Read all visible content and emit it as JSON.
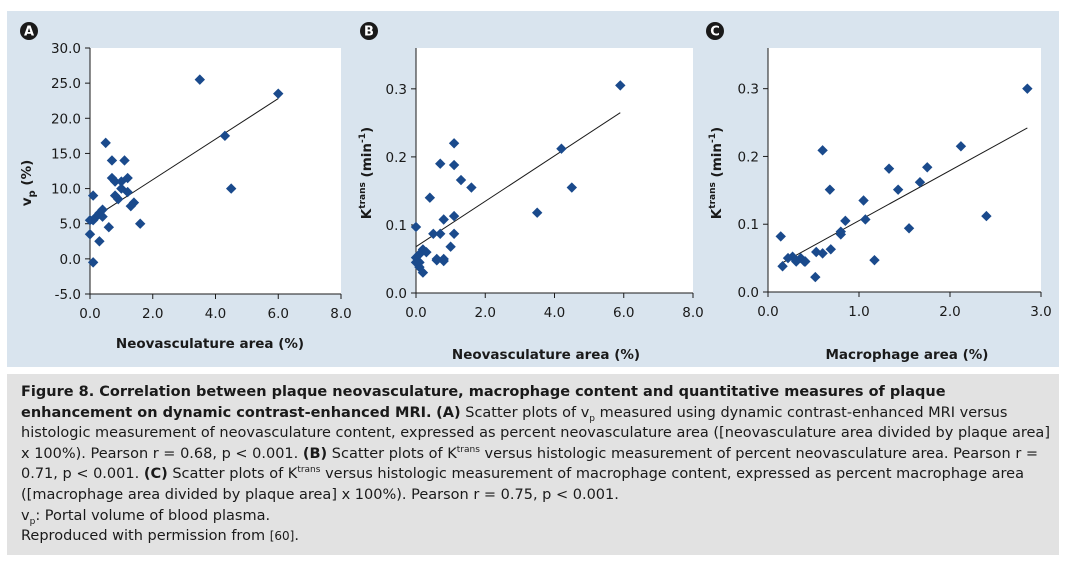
{
  "chart_data": [
    {
      "type": "scatter",
      "panel_label": "A",
      "xlabel": "Neovasculature area (%)",
      "ylabel_main": "v",
      "ylabel_sub": "p",
      "ylabel_rest": " (%)",
      "xlim": [
        0,
        8
      ],
      "ylim": [
        -5,
        30
      ],
      "xticks": [
        "0.0",
        "2.0",
        "4.0",
        "6.0",
        "8.0"
      ],
      "yticks": [
        "-5.0",
        "0.0",
        "5.0",
        "10.0",
        "15.0",
        "20.0",
        "25.0",
        "30.0"
      ],
      "marker_color": "#1a4a8c",
      "fit_line": [
        [
          0.0,
          5.5
        ],
        [
          6.0,
          22.8
        ]
      ],
      "x": [
        3.5,
        6.0,
        4.3,
        0.5,
        0.7,
        1.1,
        0.7,
        1.0,
        0.8,
        1.2,
        0.9,
        0.1,
        1.0,
        4.5,
        1.2,
        0.8,
        1.4,
        1.3,
        0.4,
        0.3,
        0.4,
        0.2,
        0.0,
        0.1,
        1.6,
        0.6,
        0.0,
        0.3,
        0.1
      ],
      "y": [
        25.5,
        23.5,
        17.5,
        16.5,
        14.0,
        14.0,
        11.5,
        11.0,
        11.0,
        11.5,
        8.5,
        9.0,
        10.0,
        10.0,
        9.5,
        9.0,
        8.0,
        7.5,
        7.0,
        6.5,
        6.0,
        6.0,
        5.5,
        5.5,
        5.0,
        4.5,
        3.5,
        2.5,
        -0.5
      ]
    },
    {
      "type": "scatter",
      "panel_label": "B",
      "xlabel": "Neovasculature area (%)",
      "ylabel_main": "K",
      "ylabel_sup": "trans",
      "ylabel_rest": " (min",
      "ylabel_exp": "-1",
      "ylabel_end": ")",
      "xlim": [
        0,
        8
      ],
      "ylim": [
        0,
        0.36
      ],
      "xticks": [
        "0.0",
        "2.0",
        "4.0",
        "6.0",
        "8.0"
      ],
      "yticks": [
        "0.0",
        "0.1",
        "0.2",
        "0.3"
      ],
      "marker_color": "#1a4a8c",
      "fit_line": [
        [
          0.0,
          0.068
        ],
        [
          5.9,
          0.265
        ]
      ],
      "x": [
        5.9,
        4.2,
        1.1,
        0.7,
        1.1,
        4.5,
        1.3,
        1.6,
        0.4,
        3.5,
        1.1,
        0.8,
        0.0,
        0.7,
        0.5,
        1.1,
        0.2,
        1.0,
        0.3,
        0.1,
        0.0,
        0.6,
        0.1,
        0.8,
        0.1,
        0.0,
        0.6,
        0.8,
        0.2
      ],
      "y": [
        0.305,
        0.212,
        0.22,
        0.19,
        0.188,
        0.155,
        0.166,
        0.155,
        0.14,
        0.118,
        0.113,
        0.108,
        0.097,
        0.087,
        0.087,
        0.087,
        0.064,
        0.068,
        0.06,
        0.057,
        0.052,
        0.048,
        0.045,
        0.05,
        0.038,
        0.045,
        0.05,
        0.047,
        0.03
      ]
    },
    {
      "type": "scatter",
      "panel_label": "C",
      "xlabel": "Macrophage area (%)",
      "ylabel_main": "K",
      "ylabel_sup": "trans",
      "ylabel_rest": " (min",
      "ylabel_exp": "-1",
      "ylabel_end": ")",
      "xlim": [
        0,
        3
      ],
      "ylim": [
        0,
        0.36
      ],
      "xticks": [
        "0.0",
        "1.0",
        "2.0",
        "3.0"
      ],
      "yticks": [
        "0.0",
        "0.1",
        "0.2",
        "0.3"
      ],
      "marker_color": "#1a4a8c",
      "fit_line": [
        [
          0.13,
          0.041
        ],
        [
          2.85,
          0.242
        ]
      ],
      "x": [
        2.85,
        2.12,
        0.6,
        1.75,
        1.33,
        1.67,
        0.68,
        1.43,
        1.05,
        2.4,
        0.85,
        1.07,
        1.55,
        0.8,
        0.8,
        0.14,
        0.69,
        0.53,
        0.6,
        1.17,
        0.27,
        0.36,
        0.4,
        0.22,
        0.31,
        0.41,
        0.16,
        0.52
      ],
      "y": [
        0.3,
        0.215,
        0.209,
        0.184,
        0.182,
        0.162,
        0.151,
        0.151,
        0.135,
        0.112,
        0.105,
        0.107,
        0.094,
        0.089,
        0.085,
        0.082,
        0.063,
        0.059,
        0.057,
        0.047,
        0.052,
        0.05,
        0.045,
        0.05,
        0.045,
        0.045,
        0.038,
        0.022
      ]
    }
  ],
  "caption": {
    "title": "Figure 8. Correlation between plaque neovasculature, macrophage content and quantitative measures of plaque enhancement on dynamic contrast-enhanced MRI.",
    "a_label": "(A)",
    "a_text_1": "Scatter plots of v",
    "a_sub": "p",
    "a_text_2": "measured using dynamic contrast-enhanced MRI versus histologic measurement of neovasculature content, expressed as percent neovasculature area ([neovasculature area divided by plaque area] x 100%). Pearson r = 0.68, p < 0.001.",
    "b_label": "(B)",
    "b_text_1": "Scatter plots of K",
    "b_sup": "trans",
    "b_text_2": "versus histologic measurement of percent neovasculature area. Pearson r = 0.71, p < 0.001.",
    "c_label": "(C)",
    "c_text_1": "Scatter plots of K",
    "c_sup": "trans",
    "c_text_2": "versus histologic measurement of macrophage content, expressed as percent macrophage area ([macrophage area divided by plaque area] x 100%). Pearson r = 0.75, p < 0.001.",
    "vp_main": "v",
    "vp_sub": "p",
    "vp_text": ": Portal volume of blood plasma.",
    "repro_text": "Reproduced with permission from",
    "repro_ref": "[60]",
    "repro_end": "."
  }
}
